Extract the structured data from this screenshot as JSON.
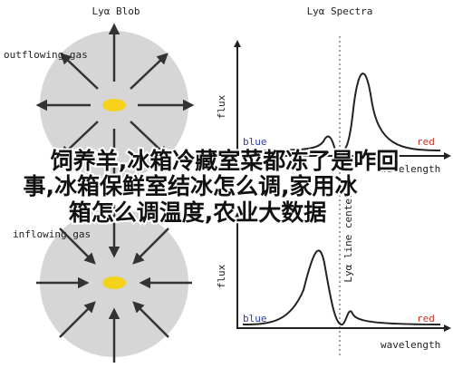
{
  "left_panel": {
    "title": "Lyα Blob",
    "top_label": "outflowing gas",
    "bottom_label": "inflowing gas"
  },
  "right_panel": {
    "title": "Lyα Spectra",
    "top_plot": {
      "y_label": "flux",
      "blue_label": "blue",
      "red_label": "red",
      "x_label": "wavelength"
    },
    "bottom_plot": {
      "y_label": "flux",
      "blue_label": "blue",
      "red_label": "red",
      "x_label": "wavelength",
      "line_label": "Lyα line center"
    }
  },
  "overlay": {
    "lines": [
      "饲养羊,冰箱冷藏室菜都冻了是咋回",
      "事,冰箱保鲜室结冰怎么调,家用冰",
      "箱怎么调温度,农业大数据"
    ]
  }
}
